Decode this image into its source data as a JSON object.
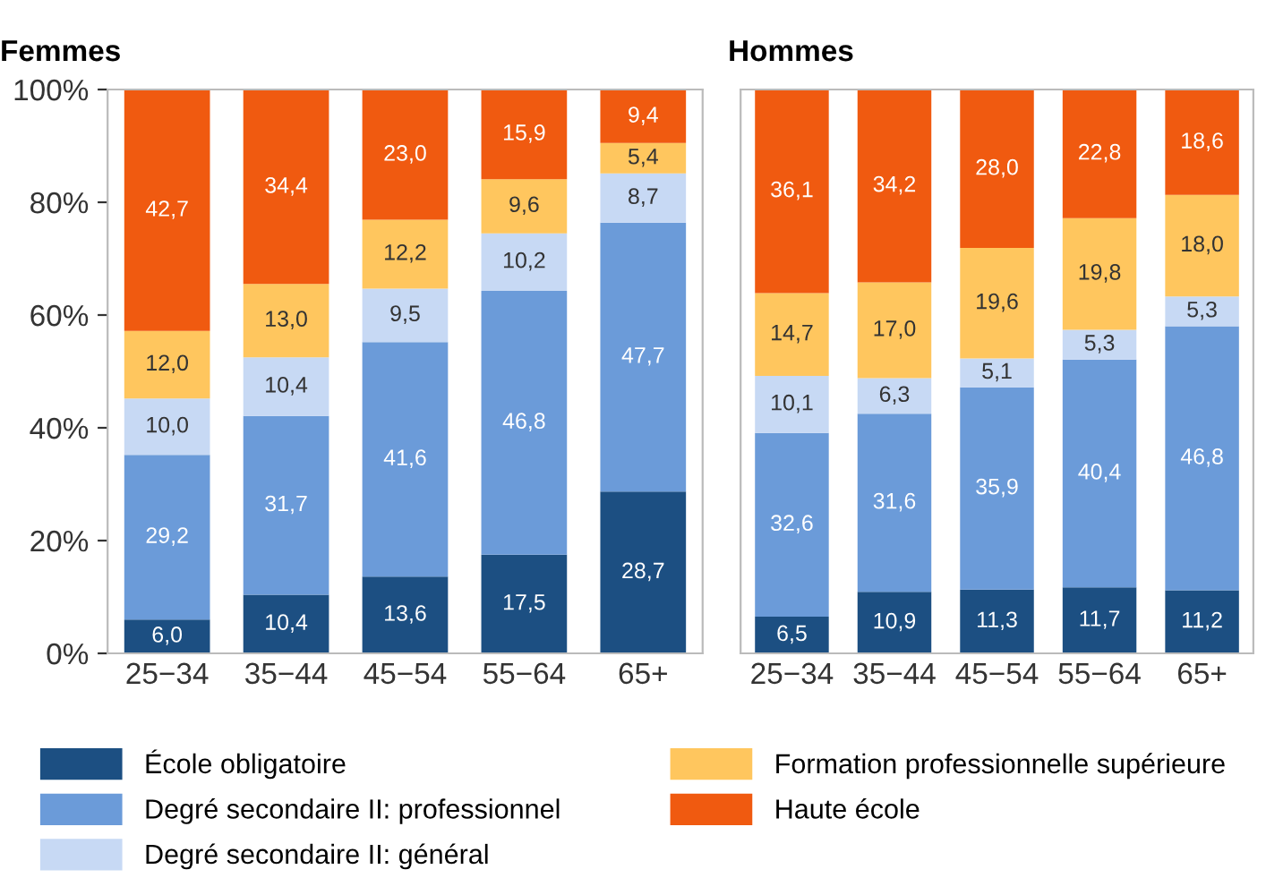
{
  "chart_data": [
    {
      "type": "bar",
      "title": "Femmes",
      "stacked": true,
      "categories": [
        "25−34",
        "35−44",
        "45−54",
        "55−64",
        "65+"
      ],
      "ylim": [
        0,
        100
      ],
      "yticks": [
        {
          "value": 0,
          "label": "0%"
        },
        {
          "value": 20,
          "label": "20%"
        },
        {
          "value": 40,
          "label": "40%"
        },
        {
          "value": 60,
          "label": "60%"
        },
        {
          "value": 80,
          "label": "80%"
        },
        {
          "value": 100,
          "label": "100%"
        }
      ],
      "grid": false,
      "legend": "bottom",
      "series": [
        {
          "name": "École obligatoire",
          "color": "#1c4f82",
          "values": [
            6.0,
            10.4,
            13.6,
            17.5,
            28.7
          ],
          "value_labels": [
            "6,0",
            "10,4",
            "13,6",
            "17,5",
            "28,7"
          ]
        },
        {
          "name": "Degré secondaire II: professionnel",
          "color": "#6b9bd9",
          "values": [
            29.2,
            31.7,
            41.6,
            46.8,
            47.7
          ],
          "value_labels": [
            "29,2",
            "31,7",
            "41,6",
            "46,8",
            "47,7"
          ]
        },
        {
          "name": "Degré secondaire II: général",
          "color": "#c7d9f4",
          "values": [
            10.0,
            10.4,
            9.5,
            10.2,
            8.7
          ],
          "value_labels": [
            "10,0",
            "10,4",
            "9,5",
            "10,2",
            "8,7"
          ]
        },
        {
          "name": "Formation professionnelle supérieure",
          "color": "#ffc65e",
          "values": [
            12.0,
            13.0,
            12.2,
            9.6,
            5.4
          ],
          "value_labels": [
            "12,0",
            "13,0",
            "12,2",
            "9,6",
            "5,4"
          ]
        },
        {
          "name": "Haute école",
          "color": "#f05a10",
          "values": [
            42.7,
            34.4,
            23.0,
            15.9,
            9.4
          ],
          "value_labels": [
            "42,7",
            "34,4",
            "23,0",
            "15,9",
            "9,4"
          ]
        }
      ]
    },
    {
      "type": "bar",
      "title": "Hommes",
      "stacked": true,
      "categories": [
        "25−34",
        "35−44",
        "45−54",
        "55−64",
        "65+"
      ],
      "ylim": [
        0,
        100
      ],
      "grid": false,
      "tick_labels": "x",
      "series": [
        {
          "color": "#1c4f82",
          "values": [
            6.5,
            10.9,
            11.3,
            11.7,
            11.2
          ],
          "value_labels": [
            "6,5",
            "10,9",
            "11,3",
            "11,7",
            "11,2"
          ]
        },
        {
          "color": "#6b9bd9",
          "values": [
            32.6,
            31.6,
            35.9,
            40.4,
            46.8
          ],
          "value_labels": [
            "32,6",
            "31,6",
            "35,9",
            "40,4",
            "46,8"
          ]
        },
        {
          "color": "#c7d9f4",
          "values": [
            10.1,
            6.3,
            5.1,
            5.3,
            5.3
          ],
          "value_labels": [
            "10,1",
            "6,3",
            "5,1",
            "5,3",
            "5,3"
          ]
        },
        {
          "color": "#ffc65e",
          "values": [
            14.7,
            17.0,
            19.6,
            19.8,
            18.0
          ],
          "value_labels": [
            "14,7",
            "17,0",
            "19,6",
            "19,8",
            "18,0"
          ]
        },
        {
          "color": "#f05a10",
          "values": [
            36.1,
            34.2,
            28.0,
            22.8,
            18.6
          ],
          "value_labels": [
            "36,1",
            "34,2",
            "28,0",
            "22,8",
            "18,6"
          ]
        }
      ]
    }
  ]
}
